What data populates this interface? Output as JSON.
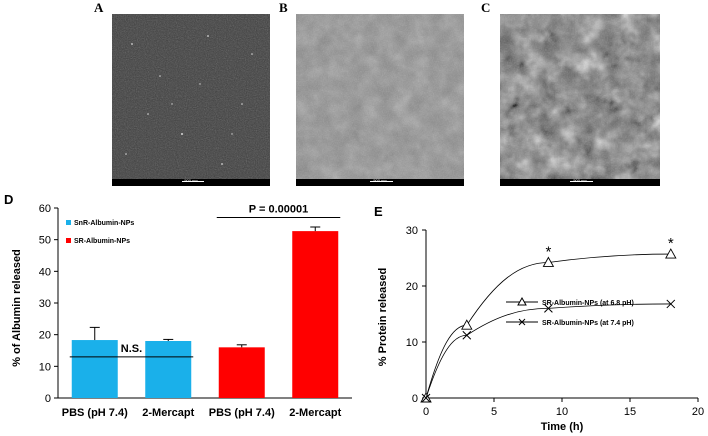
{
  "panels": {
    "a": "A",
    "b": "B",
    "c": "C",
    "d": "D",
    "e": "E"
  },
  "micrographs": [
    {
      "id": "A",
      "scale": "500 nm",
      "tone": "#3a3a3a"
    },
    {
      "id": "B",
      "scale": "500 nm",
      "tone": "#7a7a7a"
    },
    {
      "id": "C",
      "scale": "500 nm",
      "tone": "#5a5a5a"
    }
  ],
  "chart_data": [
    {
      "panel": "D",
      "type": "bar",
      "ylabel": "% of Albumin released",
      "ylim": [
        0,
        60
      ],
      "yticks": [
        0,
        10,
        20,
        30,
        40,
        50,
        60
      ],
      "categories": [
        "PBS (pH 7.4)",
        "2-Mercapt",
        "PBS (pH 7.4)",
        "2-Mercapt"
      ],
      "values": [
        18.3,
        18.0,
        16.0,
        52.7
      ],
      "errors": [
        4.0,
        0.5,
        0.8,
        1.3
      ],
      "bar_colors": [
        "#1ab0ea",
        "#1ab0ea",
        "#ff0000",
        "#ff0000"
      ],
      "legend": [
        {
          "name": "SnR-Albumin-NPs",
          "color": "#1ab0ea"
        },
        {
          "name": "SR-Albumin-NPs",
          "color": "#ff0000"
        }
      ],
      "annotations": [
        {
          "text": "N.S.",
          "between": [
            0,
            1
          ],
          "y": 13
        },
        {
          "text": "P = 0.00001",
          "between": [
            2,
            3
          ],
          "y": 57
        }
      ]
    },
    {
      "panel": "E",
      "type": "line",
      "xlabel": "Time (h)",
      "ylabel": "% Protein released",
      "xlim": [
        0,
        20
      ],
      "ylim": [
        0,
        30
      ],
      "xticks": [
        0,
        5,
        10,
        15,
        20
      ],
      "yticks": [
        0,
        10,
        20,
        30
      ],
      "series": [
        {
          "name": "SR-Albumin-NPs (at 6.8 pH)",
          "marker": "triangle",
          "x": [
            0,
            3,
            9,
            18
          ],
          "y": [
            0,
            13,
            24.2,
            25.7
          ]
        },
        {
          "name": "SR-Albumin-NPs (at 7.4 pH)",
          "marker": "x",
          "x": [
            0,
            3,
            9,
            18
          ],
          "y": [
            0,
            11.2,
            16.0,
            16.8
          ]
        }
      ],
      "significance": [
        {
          "text": "*",
          "x": 9,
          "y": 24.2
        },
        {
          "text": "*",
          "x": 18,
          "y": 25.7
        }
      ]
    }
  ]
}
